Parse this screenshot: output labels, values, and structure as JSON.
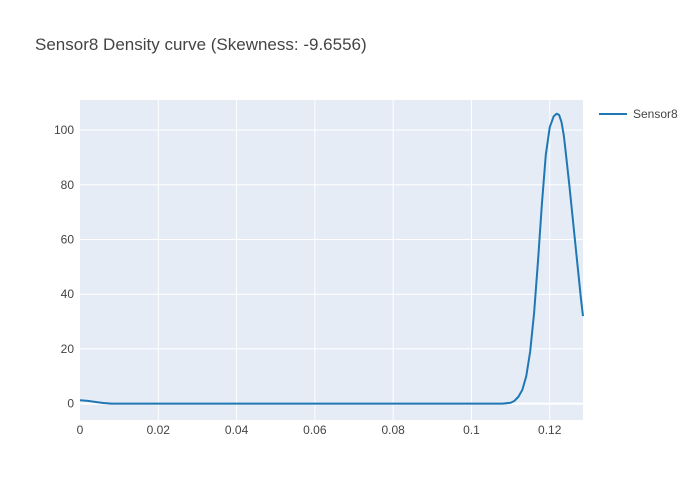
{
  "chart_data": {
    "type": "line",
    "title": "Sensor8 Density curve (Skewness: -9.6556)",
    "xlabel": "",
    "ylabel": "",
    "xlim": [
      0,
      0.1285
    ],
    "ylim": [
      -6,
      111
    ],
    "x_ticks": [
      0,
      0.02,
      0.04,
      0.06,
      0.08,
      0.1,
      0.12
    ],
    "x_tick_labels": [
      "0",
      "0.02",
      "0.04",
      "0.06",
      "0.08",
      "0.1",
      "0.12"
    ],
    "y_ticks": [
      0,
      20,
      40,
      60,
      80,
      100
    ],
    "y_tick_labels": [
      "0",
      "20",
      "40",
      "60",
      "80",
      "100"
    ],
    "grid": true,
    "legend_position": "top-right",
    "series": [
      {
        "name": "Sensor8",
        "color": "#1f77b4",
        "x": [
          0,
          0.002,
          0.004,
          0.006,
          0.008,
          0.012,
          0.02,
          0.04,
          0.06,
          0.08,
          0.1,
          0.108,
          0.11,
          0.111,
          0.112,
          0.113,
          0.114,
          0.115,
          0.116,
          0.117,
          0.118,
          0.119,
          0.12,
          0.121,
          0.1218,
          0.1224,
          0.123,
          0.1236,
          0.124,
          0.125,
          0.126,
          0.127,
          0.128,
          0.1285
        ],
        "y": [
          1.2,
          1.0,
          0.6,
          0.2,
          0.0,
          0.0,
          0.0,
          0.0,
          0.0,
          0.0,
          0.0,
          0.0,
          0.3,
          1.0,
          2.5,
          5.0,
          10.0,
          19.0,
          33.0,
          52.0,
          73.0,
          91.0,
          101.0,
          105.0,
          106.0,
          105.5,
          103.0,
          98.0,
          93.0,
          80.0,
          66.0,
          52.0,
          38.0,
          32.0
        ]
      }
    ]
  }
}
